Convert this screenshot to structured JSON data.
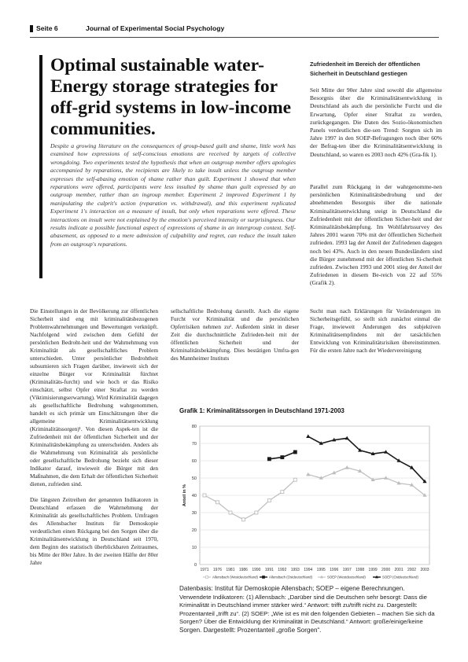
{
  "header": {
    "page": "Seite 6",
    "journal": "Journal of Experimental Social Psychology"
  },
  "title": "Optimal sustainable water-Energy storage strategies for off-grid systems in low-income communities.",
  "abstract": "Despite a growing literature on the consequences of group-based guilt and shame, little work has examined how expressions of self-conscious emotions are received by targets of collective wrongdoing. Two experiments tested the hypothesis that when an outgroup member offers apologies accompanied by reparations, the recipients are likely to take insult unless the outgroup member expresses the self-abasing emotion of shame rather than guilt. Experiment 1 showed that when reparations were offered, participants were less insulted by shame than guilt expressed by an outgroup member, rather than an ingroup member. Experiment 2 improved Experiment 1 by manipulating the culprit's action (reparation vs. withdrawal), and this experiment replicated Experiment 1's interaction on a measure of insult, but only when reparations were offered. These interactions on insult were not explained by the emotion's perceived intensity or surprisingness. Our results indicate a possible functional aspect of expressions of shame in an intergroup context. Self-abasement, as opposed to a mere admission of culpability and regret, can reduce the insult taken from an outgroup's reparations.",
  "side": {
    "heading": "Zufriedenheit im Bereich der öffentlichen Sicherheit in Deutschland gestiegen",
    "p1": "Seit Mitte der 90er Jahre sind sowohl die allgemeine Besorgnis über die Kriminalitätsentwicklung in Deutschland als auch die persönliche Furcht und die Erwartung, Opfer einer Straftat zu werden, zurückgegangen. Die Daten des Sozio-ökonomischen Panels verdeutlichen die-sen Trend: Sorgten sich im Jahre 1997 in den SOEP-Befragungen noch über 60% der Befrag-ten über die Kriminalitätsentwicklung in Deutschland, so waren es 2003 noch 42% (Gra-fik 1).",
    "p2": "Parallel zum Rückgang in der wahrgenomme-nen persönlichen Kriminalitätsbedrohung und der abnehmenden Besorgnis über die nationale Kriminalitätsentwicklung steigt in Deutschland die Zufriedenheit mit der öffentlichen Sicher-heit und der Kriminalitätsbekämpfung. Im Wohlfahrtssurvey des Jahres 2001 waren 70% mit der öffentlichen Sicherheit zufrieden. 1993 lag der Anteil der Zufriedenen dagegen noch bei 43%. Auch in den neuen Bundesländern sind die Bürger zunehmend mit der öffentlichen Si-cherheit zufrieden. Zwischen 1993 und 2001 stieg der Anteil der Zufriedenen in diesem Be-reich von 22 auf 55% (Grafik 2)."
  },
  "body": {
    "col1_p1": "Die Einstellungen in der Bevölkerung zur öffentlichen Sicherheit sind eng mit kriminalitätsbezogenen Problemwahrnehmungen und Bewertungen verknüpft. Nachfolgend wird zwischen dem Gefühl der persönlichen Bedroht-heit und der Wahrnehmung von Kriminalität als gesellschaftliches Problem unterschieden. Unter persönlicher Bedrohtheit subsumieren sich Fragen darüber, inwieweit sich der einzelne Bürger vor Kriminalität fürchtet (Kriminalitäts-furcht) und wie hoch er das Risiko einschätzt, selbst Opfer einer Straftat zu werden (Viktimisierungserwartung). Wird Kriminalität dagegen als gesellschaftliche Bedrohung wahrgenommen, handelt es sich primär um Einschätzungen über die allgemeine Kriminalitätsentwicklung (Kriminalitätssorgen)¹. Von diesen Aspek-ten ist die Zufriedenheit mit der öffentlichen Sicherheit und der Kriminalitätsbekämpfung zu unterscheiden. Anders als die Wahrnehmung von Kriminalität als persönliche oder gesellschaftliche Bedrohung bezieht sich dieser Indikator darauf, inwieweit die Bürger mit den Maßnahmen, die dem Erhalt der öffentlichen Sicherheit dienen, zufrieden sind.",
    "col1_p2": "Die längsten Zeitreihen der genannten Indikatoren in Deutschland erfassen die Wahrnehmung der Kriminalität als gesellschaftliches Problem. Umfragen des Allensbacher Instituts für Demoskopie verdeutlichen einen Rückgang bei den Sorgen über die Kriminalitätsentwicklung in Deutschland seit 1970, dem Beginn des statistisch überblickbaren Zeitraumes, bis Mitte der 80er Jahre. In der zweiten Hälfte der 80er Jahre",
    "col2_p1": "sellschaftliche Bedrohung darstellt. Auch die eigene Furcht vor Kriminalität und die persönlichen Opferrisiken nehmen zu². Außerdem sinkt in dieser Zeit die durchschnittliche Zufrieden-heit mit der öffentlichen Sicherheit und der Kriminalitätsbekämpfung. Dies bestätigen Umfra-gen des Mannheimer Instituts",
    "col3_p1": "Sucht man nach Erklärungen für Veränderungen im Sicherheitsgefühl, so stellt sich zunächst einmal die Frage, inwieweit Änderungen des subjektiven Kriminalitätsempfindens mit der tatsächlichen Entwicklung von Kriminalitätsrisiken übereinstimmen. Für die ersten Jahre nach der Wiedervereinigung"
  },
  "chart": {
    "title": "Grafik 1: Kriminalitätssorgen in Deutschland 1971-2003",
    "caption_main": "Datenbasis: Institut für Demoskopie Allensbach; SOEP – eigene Berechnungen.",
    "caption_sub": "Verwendete Indikatoren: (1) Allensbach: „Darüber sind die Deutschen sehr besorgt: Dass die Kriminalität in Deutschland immer stärker wird.“ Antwort: trifft zu/trifft nicht zu. Dargestellt: Prozentanteil „trifft zu“. (2) SOEP: „Wie ist es mit den folgenden Gebieten – machen Sie sich da Sorgen? Über die Entwicklung der Kriminalität in Deutschland.“ Antwort: große/einige/keine",
    "caption_tail": "Sorgen. Dargestellt: Prozentanteil „große Sorgen“."
  },
  "chart_data": {
    "type": "line",
    "title": "Grafik 1: Kriminalitätssorgen in Deutschland 1971-2003",
    "ylabel": "Anteil in %",
    "ylim": [
      0,
      80
    ],
    "yticks": [
      0,
      10,
      20,
      30,
      40,
      50,
      60,
      70,
      80
    ],
    "xlabels": [
      "1971",
      "1976",
      "1981",
      "1986",
      "1990",
      "1991",
      "1992",
      "1993",
      "1994",
      "1995",
      "1996",
      "1997",
      "1998",
      "1999",
      "2000",
      "2001",
      "2002",
      "2003"
    ],
    "grid": true,
    "legend_position": "bottom",
    "series": [
      {
        "name": "Allensbach (Westdeutschland)",
        "style": "thin-open-square",
        "color": "#bdbdbd",
        "points": [
          [
            0,
            40
          ],
          [
            1,
            36
          ],
          [
            2,
            30
          ],
          [
            3,
            26
          ],
          [
            4,
            30
          ],
          [
            5,
            37
          ],
          [
            6,
            42
          ],
          [
            7,
            49
          ]
        ]
      },
      {
        "name": "Allensbach (Ostdeutschland)",
        "style": "bold-square",
        "color": "#1a1a1a",
        "points": [
          [
            5,
            61
          ],
          [
            6,
            62
          ],
          [
            7,
            65
          ]
        ]
      },
      {
        "name": "SOEP (Westdeutschland)",
        "style": "thin-triangle",
        "color": "#bdbdbd",
        "points": [
          [
            8,
            52
          ],
          [
            9,
            50
          ],
          [
            10,
            53
          ],
          [
            11,
            56
          ],
          [
            12,
            54
          ],
          [
            13,
            49
          ],
          [
            14,
            50
          ],
          [
            15,
            47
          ],
          [
            16,
            46
          ],
          [
            17,
            40
          ]
        ]
      },
      {
        "name": "SOEP (Ostdeutschland)",
        "style": "bold-triangle",
        "color": "#1a1a1a",
        "points": [
          [
            8,
            74
          ],
          [
            9,
            70
          ],
          [
            10,
            72
          ],
          [
            11,
            73
          ],
          [
            12,
            66
          ],
          [
            13,
            64
          ],
          [
            14,
            65
          ],
          [
            15,
            60
          ],
          [
            16,
            56
          ],
          [
            17,
            48
          ]
        ]
      }
    ]
  }
}
